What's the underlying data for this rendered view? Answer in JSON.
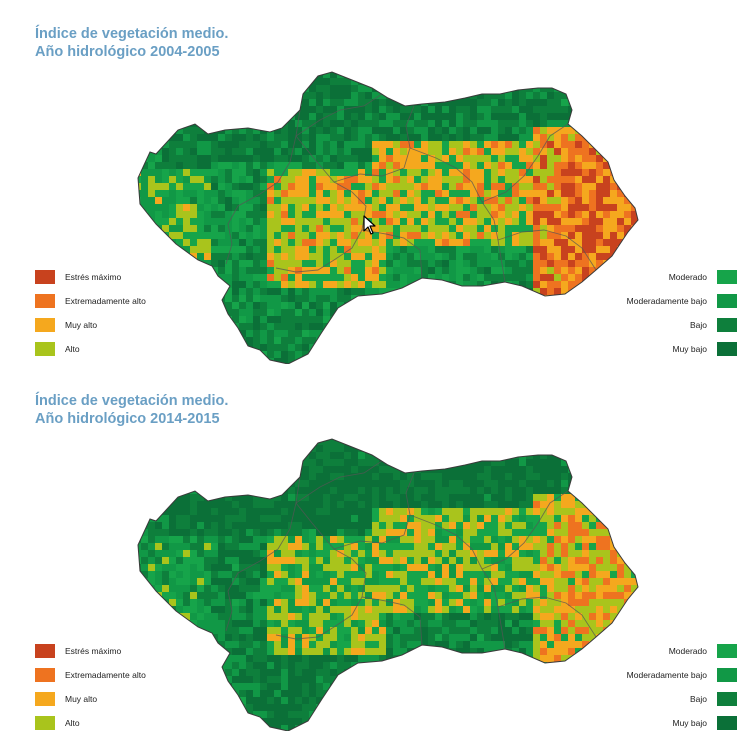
{
  "panels": [
    {
      "title_line1": "Índice de vegetación medio.",
      "title_line2": "Año hidrológico 2004-2005",
      "stress_pattern": "high"
    },
    {
      "title_line1": "Índice de vegetación medio.",
      "title_line2": "Año hidrológico 2014-2015",
      "stress_pattern": "moderate"
    }
  ],
  "legend": {
    "left": [
      {
        "label": "Estrés máximo",
        "color": "#c8421e"
      },
      {
        "label": "Extremadamente alto",
        "color": "#ee7320"
      },
      {
        "label": "Muy alto",
        "color": "#f5a81e"
      },
      {
        "label": "Alto",
        "color": "#a9c41c"
      }
    ],
    "right": [
      {
        "label": "Moderado",
        "color": "#16a44a"
      },
      {
        "label": "Moderadamente bajo",
        "color": "#119846"
      },
      {
        "label": "Bajo",
        "color": "#0e7f3c"
      },
      {
        "label": "Muy bajo",
        "color": "#0b7038"
      }
    ]
  },
  "colors": {
    "title": "#6a9fc4",
    "border": "#555555"
  }
}
